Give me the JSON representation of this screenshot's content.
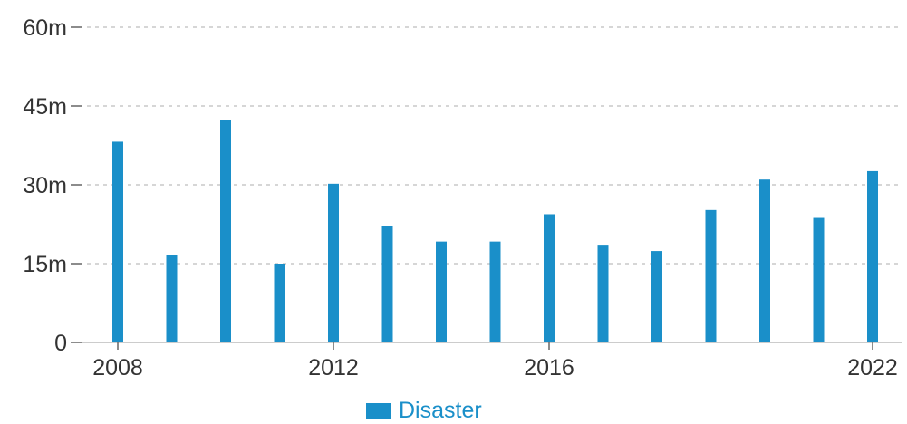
{
  "chart_data": {
    "type": "bar",
    "x": [
      2008,
      2009,
      2010,
      2011,
      2012,
      2013,
      2014,
      2015,
      2016,
      2017,
      2018,
      2019,
      2020,
      2021,
      2022
    ],
    "series": [
      {
        "name": "Disaster",
        "color": "#1a8fc9",
        "values": [
          38.2,
          16.7,
          42.3,
          15.0,
          30.2,
          22.1,
          19.2,
          19.2,
          24.4,
          18.6,
          17.4,
          25.2,
          31.0,
          23.7,
          32.6
        ]
      }
    ],
    "ylim": [
      0,
      60
    ],
    "y_ticks": [
      {
        "value": 0,
        "label": "0"
      },
      {
        "value": 15,
        "label": "15m"
      },
      {
        "value": 30,
        "label": "30m"
      },
      {
        "value": 45,
        "label": "45m"
      },
      {
        "value": 60,
        "label": "60m"
      }
    ],
    "x_ticks": [
      {
        "value": 2008,
        "label": "2008"
      },
      {
        "value": 2012,
        "label": "2012"
      },
      {
        "value": 2016,
        "label": "2016"
      },
      {
        "value": 2022,
        "label": "2022"
      }
    ],
    "grid": true,
    "legend_position": "bottom"
  }
}
